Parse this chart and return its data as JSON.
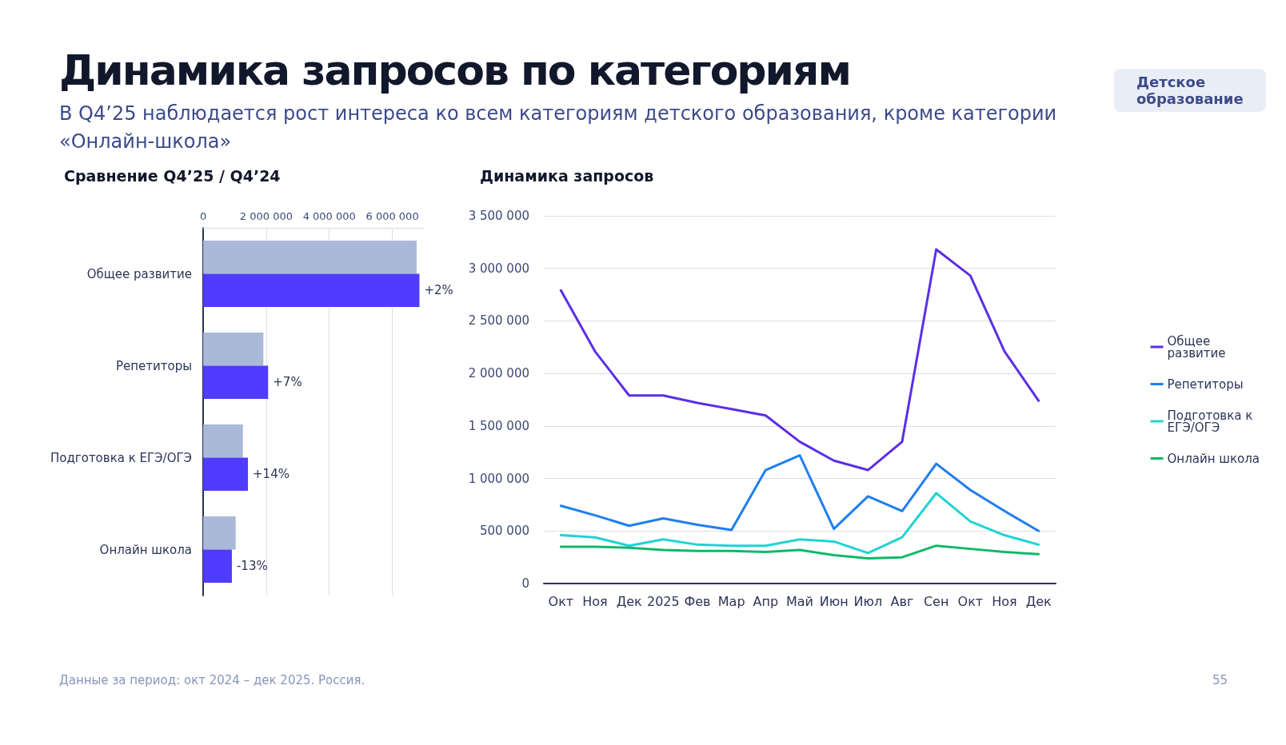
{
  "chart_data": [
    {
      "type": "other",
      "title": "Динамика запросов по категориям",
      "subtitle": "В Q4’25 наблюдается рост интереса ко всем категориям детского образования, кроме категории «Онлайн-школа»",
      "annotations": [
        "Детское образование",
        "Данные за период: окт 2024 – дек 2025. Россия.",
        "55"
      ]
    },
    {
      "type": "bar",
      "title": "Сравнение Q4’25 / Q4’24",
      "orientation": "horizontal",
      "categories": [
        "Общее развитие",
        "Репетиторы",
        "Подготовка к ЕГЭ/ОГЭ",
        "Онлайн школа"
      ],
      "series": [
        {
          "color": "#aab9d8",
          "values": [
            6770000,
            1910000,
            1260000,
            1030000
          ]
        },
        {
          "color": "#4f3cff",
          "values": [
            6860000,
            2060000,
            1420000,
            910000
          ]
        }
      ],
      "annotations": [
        {
          "text": "+2%",
          "x": 6860000,
          "y": "Общее развитие"
        },
        {
          "text": "+7%",
          "x": 2060000,
          "y": "Репетиторы"
        },
        {
          "text": "+14%",
          "x": 1420000,
          "y": "Подготовка к ЕГЭ/ОГЭ"
        },
        {
          "text": "-13%",
          "x": 910000,
          "y": "Онлайн школа"
        }
      ],
      "xlim": [
        0,
        7000000
      ],
      "xticks": [
        0,
        {
          "value": 2000000,
          "label": "2 000 000"
        },
        {
          "value": 4000000,
          "label": "4 000 000"
        },
        {
          "value": 6000000,
          "label": "6 000 000"
        }
      ],
      "grid": "x",
      "legend": false
    },
    {
      "type": "line",
      "title": "Динамика запросов",
      "categories": [
        "Окт",
        "Ноя",
        "Дек",
        "2025",
        "Фев",
        "Мар",
        "Апр",
        "Май",
        "Июн",
        "Июл",
        "Авг",
        "Сен",
        "Окт",
        "Ноя",
        "Дек"
      ],
      "series": [
        {
          "name": "Общее развитие",
          "color": "#5b2ee8",
          "values": [
            2790000,
            2210000,
            1790000,
            1790000,
            1720000,
            1660000,
            1600000,
            1350000,
            1170000,
            1080000,
            1350000,
            3180000,
            2930000,
            2210000,
            1740000
          ]
        },
        {
          "name": "Репетиторы",
          "color": "#1e7ef0",
          "values": [
            740000,
            650000,
            550000,
            620000,
            560000,
            510000,
            1080000,
            1220000,
            520000,
            830000,
            690000,
            1140000,
            890000,
            690000,
            500000
          ]
        },
        {
          "name": "Подготовка к ЕГЭ/ОГЭ",
          "color": "#1fd3d3",
          "values": [
            460000,
            440000,
            360000,
            420000,
            370000,
            360000,
            360000,
            420000,
            400000,
            290000,
            440000,
            860000,
            590000,
            460000,
            370000
          ]
        },
        {
          "name": "Онлайн школа",
          "color": "#10b868",
          "values": [
            350000,
            350000,
            340000,
            320000,
            310000,
            310000,
            300000,
            320000,
            270000,
            240000,
            250000,
            360000,
            330000,
            300000,
            280000
          ]
        }
      ],
      "ylim": [
        0,
        3500000
      ],
      "yticks": [
        0,
        {
          "value": 500000,
          "label": "500 000"
        },
        {
          "value": 1000000,
          "label": "1 000 000"
        },
        {
          "value": 1500000,
          "label": "1 500 000"
        },
        {
          "value": 2000000,
          "label": "2 000 000"
        },
        {
          "value": 2500000,
          "label": "2 500 000"
        },
        {
          "value": 3000000,
          "label": "3 000 000"
        },
        {
          "value": 3500000,
          "label": "3 500 000"
        }
      ],
      "grid": "y",
      "legend": "right",
      "marker": "none",
      "line_style": "solid"
    }
  ]
}
